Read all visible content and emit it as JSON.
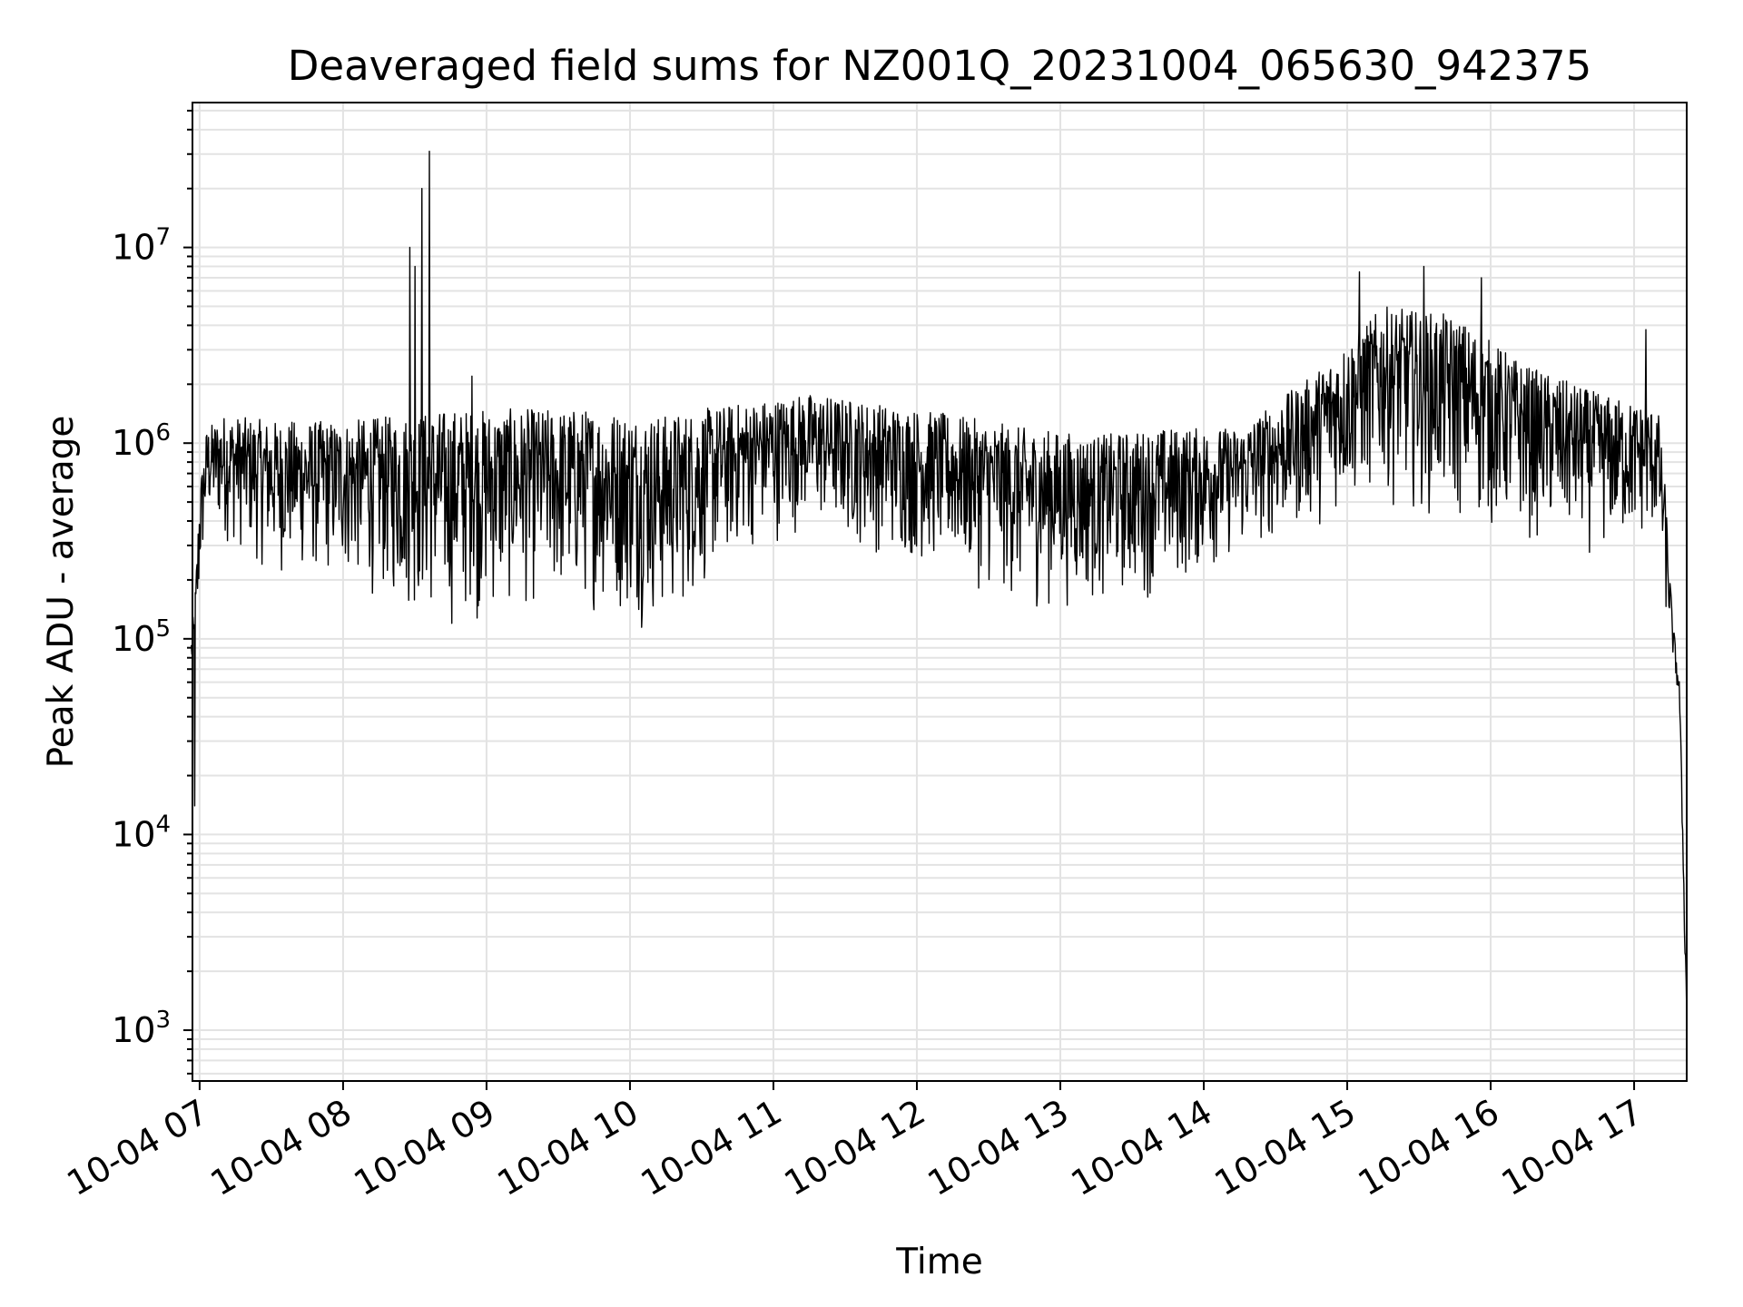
{
  "chart_data": {
    "type": "line",
    "title": "Deaveraged field sums for NZ001Q_20231004_065630_942375",
    "xlabel": "Time",
    "ylabel": "Peak ADU - average",
    "x_ticks": [
      "10-04 07",
      "10-04 08",
      "10-04 09",
      "10-04 10",
      "10-04 11",
      "10-04 12",
      "10-04 13",
      "10-04 14",
      "10-04 15",
      "10-04 16",
      "10-04 17"
    ],
    "y_scale": "log",
    "y_ticks": [
      {
        "base": "10",
        "exp": "3",
        "value": 1000
      },
      {
        "base": "10",
        "exp": "4",
        "value": 10000
      },
      {
        "base": "10",
        "exp": "5",
        "value": 100000
      },
      {
        "base": "10",
        "exp": "6",
        "value": 1000000
      },
      {
        "base": "10",
        "exp": "7",
        "value": 10000000
      }
    ],
    "xlim": [
      "2023-10-04 06:57",
      "2023-10-04 17:22"
    ],
    "ylim": [
      550,
      55000000
    ],
    "grid": true,
    "series": [
      {
        "color": "#000000",
        "x_start": "2023-10-04 06:56:30",
        "x_end": "2023-10-04 17:22:00",
        "envelope": [
          {
            "t": "06:56:30",
            "low": 70000,
            "high": 100000
          },
          {
            "t": "06:58",
            "low": 35000,
            "high": 170000
          },
          {
            "t": "07:00",
            "low": 150000,
            "high": 600000
          },
          {
            "t": "07:03",
            "low": 350000,
            "high": 1200000
          },
          {
            "t": "07:10",
            "low": 300000,
            "high": 1400000
          },
          {
            "t": "07:30",
            "low": 200000,
            "high": 1300000
          },
          {
            "t": "08:00",
            "low": 180000,
            "high": 1300000
          },
          {
            "t": "08:25",
            "low": 130000,
            "high": 1400000
          },
          {
            "t": "08:45",
            "low": 100000,
            "high": 1500000
          },
          {
            "t": "09:15",
            "low": 130000,
            "high": 1500000
          },
          {
            "t": "09:45",
            "low": 130000,
            "high": 1500000
          },
          {
            "t": "10:15",
            "low": 100000,
            "high": 1400000
          },
          {
            "t": "10:45",
            "low": 250000,
            "high": 1600000
          },
          {
            "t": "11:15",
            "low": 350000,
            "high": 1800000
          },
          {
            "t": "11:45",
            "low": 250000,
            "high": 1600000
          },
          {
            "t": "12:15",
            "low": 200000,
            "high": 1400000
          },
          {
            "t": "12:45",
            "low": 130000,
            "high": 1200000
          },
          {
            "t": "13:15",
            "low": 140000,
            "high": 1100000
          },
          {
            "t": "13:45",
            "low": 160000,
            "high": 1200000
          },
          {
            "t": "14:15",
            "low": 250000,
            "high": 1200000
          },
          {
            "t": "14:45",
            "low": 350000,
            "high": 2200000
          },
          {
            "t": "15:15",
            "low": 500000,
            "high": 5000000
          },
          {
            "t": "15:45",
            "low": 350000,
            "high": 4500000
          },
          {
            "t": "16:15",
            "low": 300000,
            "high": 2500000
          },
          {
            "t": "16:45",
            "low": 250000,
            "high": 1800000
          },
          {
            "t": "17:10",
            "low": 300000,
            "high": 1500000
          },
          {
            "t": "17:13",
            "low": 120000,
            "high": 600000
          },
          {
            "t": "17:16",
            "low": 80000,
            "high": 130000
          },
          {
            "t": "17:19",
            "low": 40000,
            "high": 60000
          },
          {
            "t": "17:21",
            "low": 3000,
            "high": 5000
          },
          {
            "t": "17:22",
            "low": 800,
            "high": 1500
          }
        ],
        "spikes": [
          {
            "t": "08:28",
            "value": 10000000
          },
          {
            "t": "08:30",
            "value": 8000000
          },
          {
            "t": "08:33",
            "value": 20000000
          },
          {
            "t": "08:36",
            "value": 31000000
          },
          {
            "t": "08:54",
            "value": 2200000
          },
          {
            "t": "15:05",
            "value": 7500000
          },
          {
            "t": "15:32",
            "value": 8000000
          },
          {
            "t": "15:56",
            "value": 7000000
          },
          {
            "t": "17:05",
            "value": 3800000
          },
          {
            "t": "06:58",
            "value": 14000
          }
        ]
      }
    ]
  }
}
